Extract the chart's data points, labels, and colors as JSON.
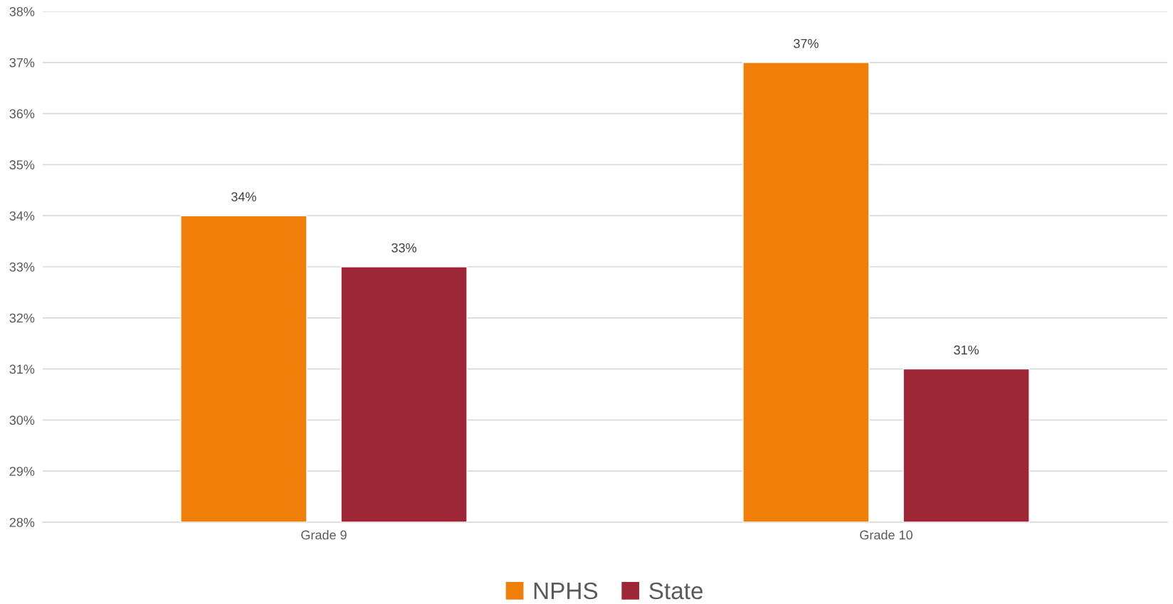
{
  "chart_data": {
    "type": "bar",
    "categories": [
      "Grade 9",
      "Grade 10"
    ],
    "series": [
      {
        "name": "NPHS",
        "color": "#f07f09",
        "values": [
          34,
          37
        ],
        "value_labels": [
          "34%",
          "37%"
        ]
      },
      {
        "name": "State",
        "color": "#9e2737",
        "values": [
          33,
          31
        ],
        "value_labels": [
          "33%",
          "31%"
        ]
      }
    ],
    "ylim": [
      28,
      38
    ],
    "yticks": [
      {
        "value": 28,
        "label": "28%"
      },
      {
        "value": 29,
        "label": "29%"
      },
      {
        "value": 30,
        "label": "30%"
      },
      {
        "value": 31,
        "label": "31%"
      },
      {
        "value": 32,
        "label": "32%"
      },
      {
        "value": 33,
        "label": "33%"
      },
      {
        "value": 34,
        "label": "34%"
      },
      {
        "value": 35,
        "label": "35%"
      },
      {
        "value": 36,
        "label": "36%"
      },
      {
        "value": 37,
        "label": "37%"
      },
      {
        "value": 38,
        "label": "38%"
      }
    ],
    "grid": "y",
    "legend": "bottom"
  }
}
